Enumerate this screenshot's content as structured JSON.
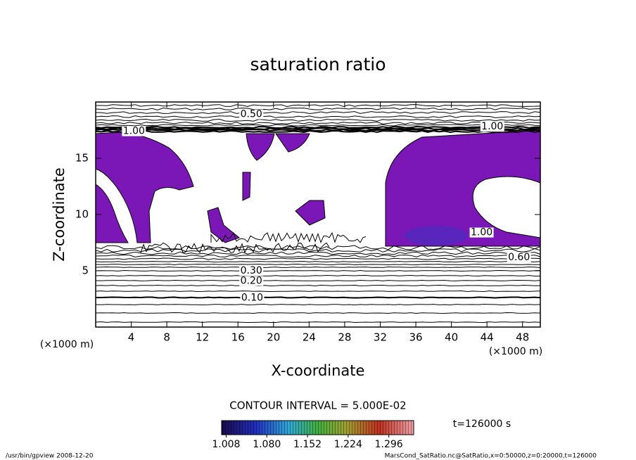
{
  "chart_data": {
    "type": "contour",
    "title": "saturation ratio",
    "x_label": "X-coordinate",
    "y_label": "Z-coordinate",
    "x_unit": "(×1000 m)",
    "y_unit": "(×1000 m)",
    "xlim": [
      0,
      50
    ],
    "ylim": [
      0,
      20
    ],
    "xticks": [
      4,
      8,
      12,
      16,
      20,
      24,
      28,
      32,
      36,
      40,
      44,
      48
    ],
    "yticks": [
      5,
      10,
      15
    ],
    "fill_color": "#7a17b6",
    "contour_labels": [
      {
        "text": "0.10",
        "x": 17.6,
        "y": 2.6
      },
      {
        "text": "0.20",
        "x": 17.5,
        "y": 4.1
      },
      {
        "text": "0.30",
        "x": 17.5,
        "y": 5.0
      },
      {
        "text": "0.50",
        "x": 17.5,
        "y": 18.9
      },
      {
        "text": "1.00",
        "x": 4.3,
        "y": 17.4
      },
      {
        "text": "1.00",
        "x": 44.6,
        "y": 17.8
      },
      {
        "text": "1.00",
        "x": 43.4,
        "y": 8.4
      },
      {
        "text": "0.60",
        "x": 47.6,
        "y": 6.2
      }
    ],
    "contour_interval": "CONTOUR INTERVAL = 5.000E-02",
    "time_label": "t=126000 s",
    "clim": [
      1.0,
      1.34
    ],
    "colorbar_ticks": [
      1.008,
      {
        "value": 1.08,
        "label": "1.080"
      },
      1.152,
      1.224,
      1.296
    ],
    "footer_left": "/usr/bin/gpview  2008-12-20",
    "footer_right": "MarsCond_SatRatio.nc@SatRatio,x=0:50000,z=0:20000,t=126000"
  }
}
